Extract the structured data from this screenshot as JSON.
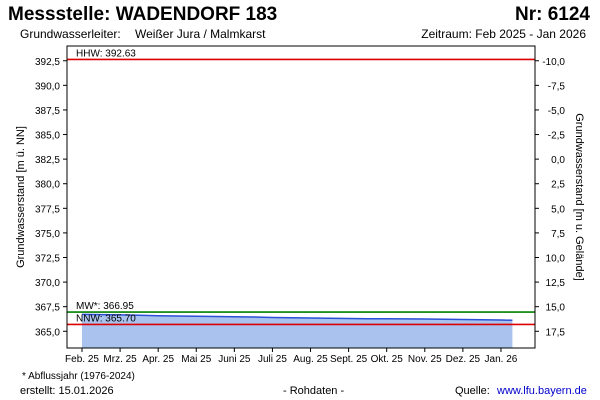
{
  "header": {
    "title": "Messstelle: WADENDORF 183",
    "number": "Nr: 6124",
    "aquifer_label": "Grundwasserleiter:",
    "aquifer_value": "Weißer Jura / Malmkarst",
    "period": "Zeitraum: Feb 2025 - Jan 2026"
  },
  "footer": {
    "footnote": "* Abflussjahr (1976-2024)",
    "created": "erstellt:  15.01.2026",
    "rawdata": "- Rohdaten -",
    "source_label": "Quelle:",
    "source_url": "www.lfu.bayern.de"
  },
  "colors": {
    "hhw_line": "#dd0000",
    "nnw_line": "#dd0000",
    "mw_line": "#008000",
    "series_line": "#2b4fd6",
    "series_fill": "#a9c3ee",
    "plot_border": "#000000"
  },
  "chart_data": {
    "type": "area",
    "title": "Messstelle: WADENDORF 183",
    "ylabel": "Grundwasserstand [m ü. NN]",
    "y2label": "Grundwasserstand [m u. Gelände]",
    "ylim": [
      363.3,
      394.0
    ],
    "y_ticks": [
      365.0,
      367.5,
      370.0,
      372.5,
      375.0,
      377.5,
      380.0,
      382.5,
      385.0,
      387.5,
      390.0,
      392.5
    ],
    "y_tick_labels": [
      "365,0",
      "367,5",
      "370,0",
      "372,5",
      "375,0",
      "377,5",
      "380,0",
      "382,5",
      "385,0",
      "387,5",
      "390,0",
      "392,5"
    ],
    "y2_ticks": [
      -10.0,
      -7.5,
      -5.0,
      -2.5,
      0.0,
      2.5,
      5.0,
      7.5,
      10.0,
      12.5,
      15.0,
      17.5
    ],
    "y2_tick_labels": [
      "-10,0",
      "-7,5",
      "-5,0",
      "-2,5",
      "0,0",
      "2,5",
      "5,0",
      "7,5",
      "10,0",
      "12,5",
      "15,0",
      "17,5"
    ],
    "y2_offset": 382.5,
    "x_categories": [
      "Feb. 25",
      "Mrz. 25",
      "Apr. 25",
      "Mai 25",
      "Juni 25",
      "Juli 25",
      "Aug. 25",
      "Sept. 25",
      "Okt. 25",
      "Nov. 25",
      "Dez. 25",
      "Jan. 26"
    ],
    "x_range_months": [
      0,
      11.5
    ],
    "reference_lines": [
      {
        "label": "HHW: 392.63",
        "value": 392.63,
        "color": "#dd0000"
      },
      {
        "label": "MW*: 366.95",
        "value": 366.95,
        "color": "#008000"
      },
      {
        "label": "NNW: 365.70",
        "value": 365.7,
        "color": "#dd0000"
      }
    ],
    "series": [
      {
        "x": [
          0.0,
          0.5,
          1.0,
          1.5,
          2.0,
          2.5,
          3.0,
          3.5,
          4.0,
          4.5,
          5.0,
          5.5,
          6.0,
          6.5,
          7.0,
          7.5,
          8.0,
          8.5,
          9.0,
          9.5,
          10.0,
          10.5,
          11.0,
          11.3
        ],
        "values": [
          366.72,
          366.7,
          366.66,
          366.63,
          366.58,
          366.55,
          366.52,
          366.5,
          366.47,
          366.45,
          366.4,
          366.38,
          366.35,
          366.33,
          366.3,
          366.28,
          366.27,
          366.26,
          366.25,
          366.23,
          366.2,
          366.17,
          366.15,
          366.12
        ]
      }
    ],
    "grid": false,
    "legend": "none"
  }
}
